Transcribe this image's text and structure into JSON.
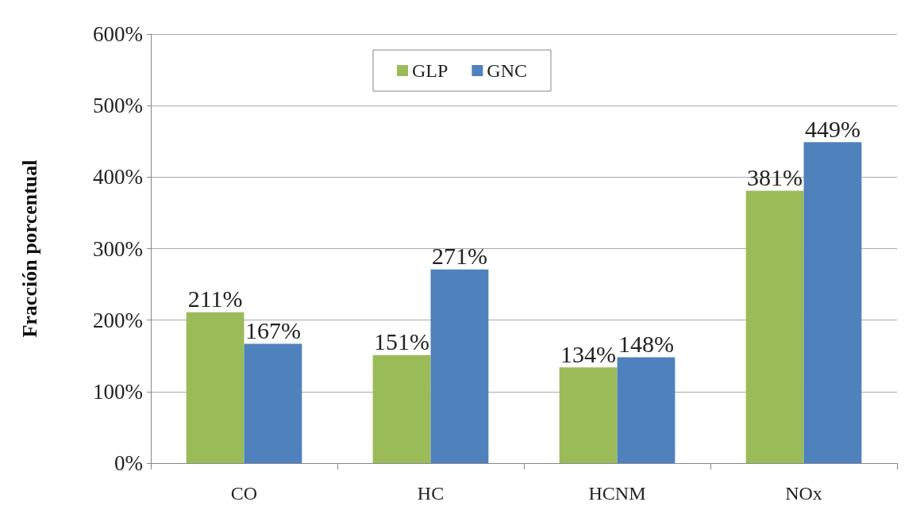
{
  "chart_data": {
    "type": "bar",
    "ylabel": "Fracción porcentual",
    "categories": [
      "CO",
      "HC",
      "HCNM",
      "NOx"
    ],
    "series": [
      {
        "name": "GLP",
        "color": "#9bbb59",
        "values": [
          211,
          151,
          134,
          381
        ],
        "value_labels": [
          "211%",
          "151%",
          "134%",
          "381%"
        ]
      },
      {
        "name": "GNC",
        "color": "#4f81bd",
        "values": [
          167,
          271,
          148,
          449
        ],
        "value_labels": [
          "167%",
          "271%",
          "148%",
          "449%"
        ]
      }
    ],
    "ylim": [
      0,
      600
    ],
    "yticks": [
      {
        "value": 0,
        "label": "0%"
      },
      {
        "value": 100,
        "label": "100%"
      },
      {
        "value": 200,
        "label": "200%"
      },
      {
        "value": 300,
        "label": "300%"
      },
      {
        "value": 400,
        "label": "400%"
      },
      {
        "value": 500,
        "label": "500%"
      },
      {
        "value": 600,
        "label": "600%"
      }
    ],
    "grid": "y",
    "legend": "top"
  }
}
